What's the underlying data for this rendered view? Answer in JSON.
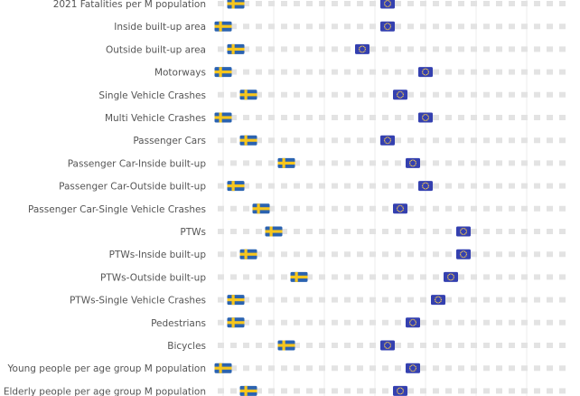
{
  "chart_data": {
    "type": "scatter",
    "title": "",
    "xlabel": "",
    "ylabel": "",
    "xlim": [
      0,
      28
    ],
    "grid": true,
    "series": [
      {
        "name": "Sweden",
        "icon": "sweden-flag-icon"
      },
      {
        "name": "EU",
        "icon": "eu-flag-icon"
      }
    ],
    "rows": [
      {
        "label": "2021 Fatalities per M population",
        "sweden": 1,
        "eu": 13
      },
      {
        "label": "Inside built-up area",
        "sweden": 0,
        "eu": 13
      },
      {
        "label": "Outside built-up area",
        "sweden": 1,
        "eu": 11
      },
      {
        "label": "Motorways",
        "sweden": 0,
        "eu": 16
      },
      {
        "label": "Single Vehicle Crashes",
        "sweden": 2,
        "eu": 14
      },
      {
        "label": "Multi Vehicle Crashes",
        "sweden": 0,
        "eu": 16
      },
      {
        "label": "Passenger Cars",
        "sweden": 2,
        "eu": 13
      },
      {
        "label": "Passenger Car-Inside built-up",
        "sweden": 5,
        "eu": 15
      },
      {
        "label": "Passenger Car-Outside built-up",
        "sweden": 1,
        "eu": 16
      },
      {
        "label": "Passenger Car-Single Vehicle Crashes",
        "sweden": 3,
        "eu": 14
      },
      {
        "label": "PTWs",
        "sweden": 4,
        "eu": 19
      },
      {
        "label": "PTWs-Inside built-up",
        "sweden": 2,
        "eu": 19
      },
      {
        "label": "PTWs-Outside built-up",
        "sweden": 6,
        "eu": 18
      },
      {
        "label": "PTWs-Single Vehicle Crashes",
        "sweden": 1,
        "eu": 17
      },
      {
        "label": "Pedestrians",
        "sweden": 1,
        "eu": 15
      },
      {
        "label": "Bicycles",
        "sweden": 5,
        "eu": 13
      },
      {
        "label": "Young people per age group M population",
        "sweden": 0,
        "eu": 15
      },
      {
        "label": "Elderly people per age group M population",
        "sweden": 2,
        "eu": 14
      }
    ],
    "colors": {
      "dash": "#e3e3e3",
      "grid": "#ededed",
      "label": "#555555",
      "swe_blue": "#2b63b0",
      "swe_yellow": "#f7c61d",
      "eu_blue": "#3440b0",
      "eu_star": "#ffd24a"
    }
  }
}
